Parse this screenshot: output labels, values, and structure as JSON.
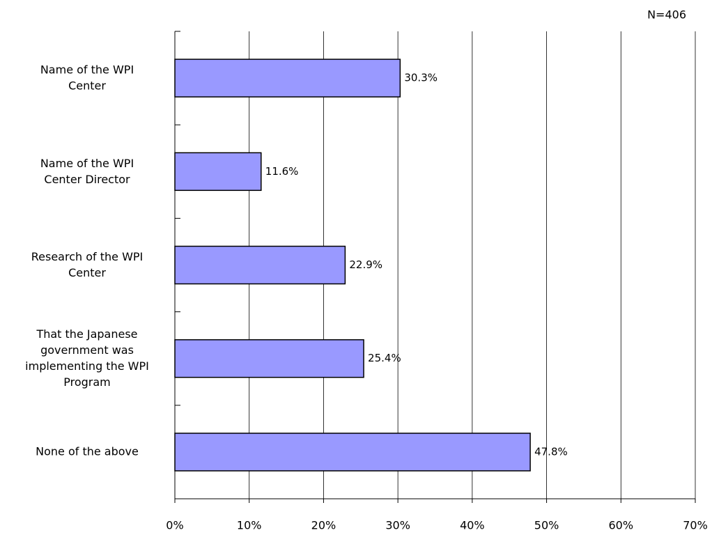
{
  "chart_data": {
    "type": "bar",
    "orientation": "horizontal",
    "annotation": "N=406",
    "categories": [
      "Name of the WPI\nCenter",
      "Name of the WPI\nCenter Director",
      "Research of the WPI\nCenter",
      "That the Japanese\ngovernment was\nimplementing the WPI\nProgram",
      "None of the above"
    ],
    "values": [
      30.3,
      11.6,
      22.9,
      25.4,
      47.8
    ],
    "value_labels": [
      "30.3%",
      "11.6%",
      "22.9%",
      "25.4%",
      "47.8%"
    ],
    "color": "#9999ff",
    "xlim": [
      0,
      70
    ],
    "xticks": [
      {
        "value": 0,
        "label": "0%"
      },
      {
        "value": 10,
        "label": "10%"
      },
      {
        "value": 20,
        "label": "20%"
      },
      {
        "value": 30,
        "label": "30%"
      },
      {
        "value": 40,
        "label": "40%"
      },
      {
        "value": 50,
        "label": "50%"
      },
      {
        "value": 60,
        "label": "60%"
      },
      {
        "value": 70,
        "label": "70%"
      }
    ],
    "grid": true
  }
}
